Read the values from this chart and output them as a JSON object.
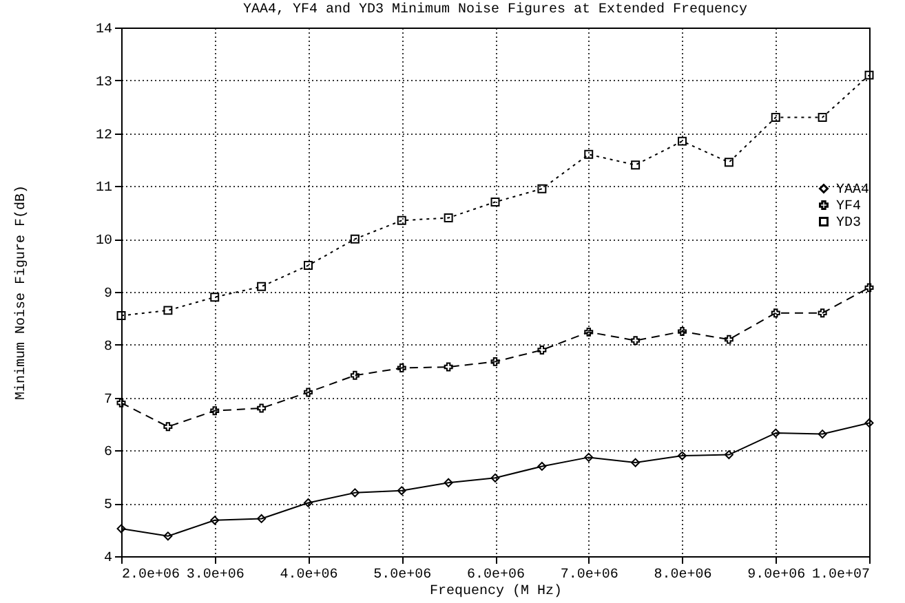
{
  "chart_data": {
    "type": "line",
    "title": "YAA4, YF4 and YD3 Minimum Noise Figures at Extended Frequency",
    "xlabel": "Frequency (M Hz)",
    "ylabel": "Minimum Noise Figure F(dB)",
    "x": [
      2000000,
      2500000,
      3000000,
      3500000,
      4000000,
      4500000,
      5000000,
      5500000,
      6000000,
      6500000,
      7000000,
      7500000,
      8000000,
      8500000,
      9000000,
      9500000,
      10000000
    ],
    "series": [
      {
        "name": "YAA4",
        "color": "#000000",
        "marker": "diamond",
        "line_style": "solid",
        "values": [
          4.52,
          4.38,
          4.68,
          4.71,
          5.01,
          5.2,
          5.24,
          5.39,
          5.48,
          5.7,
          5.87,
          5.77,
          5.9,
          5.92,
          6.33,
          6.31,
          6.52
        ]
      },
      {
        "name": "YF4",
        "color": "#000000",
        "marker": "cross",
        "line_style": "dashed",
        "values": [
          6.9,
          6.45,
          6.75,
          6.8,
          7.1,
          7.42,
          7.56,
          7.58,
          7.68,
          7.9,
          8.24,
          8.08,
          8.25,
          8.1,
          8.6,
          8.6,
          9.08
        ]
      },
      {
        "name": "YD3",
        "color": "#000000",
        "marker": "square",
        "line_style": "dotted",
        "values": [
          8.55,
          8.65,
          8.9,
          9.1,
          9.5,
          10.0,
          10.35,
          10.4,
          10.7,
          10.95,
          11.6,
          11.4,
          11.85,
          11.45,
          12.3,
          12.3,
          13.1
        ]
      }
    ],
    "xlim": [
      2000000,
      10000000
    ],
    "xticks": [
      {
        "value": 2000000,
        "label": "2.0e+06"
      },
      {
        "value": 3000000,
        "label": "3.0e+06"
      },
      {
        "value": 4000000,
        "label": "4.0e+06"
      },
      {
        "value": 5000000,
        "label": "5.0e+06"
      },
      {
        "value": 6000000,
        "label": "6.0e+06"
      },
      {
        "value": 7000000,
        "label": "7.0e+06"
      },
      {
        "value": 8000000,
        "label": "8.0e+06"
      },
      {
        "value": 9000000,
        "label": "9.0e+06"
      },
      {
        "value": 10000000,
        "label": "1.0e+07"
      }
    ],
    "ylim": [
      4,
      14
    ],
    "yticks": [
      4,
      5,
      6,
      7,
      8,
      9,
      10,
      11,
      12,
      13,
      14
    ],
    "grid": true,
    "legend": "right"
  }
}
